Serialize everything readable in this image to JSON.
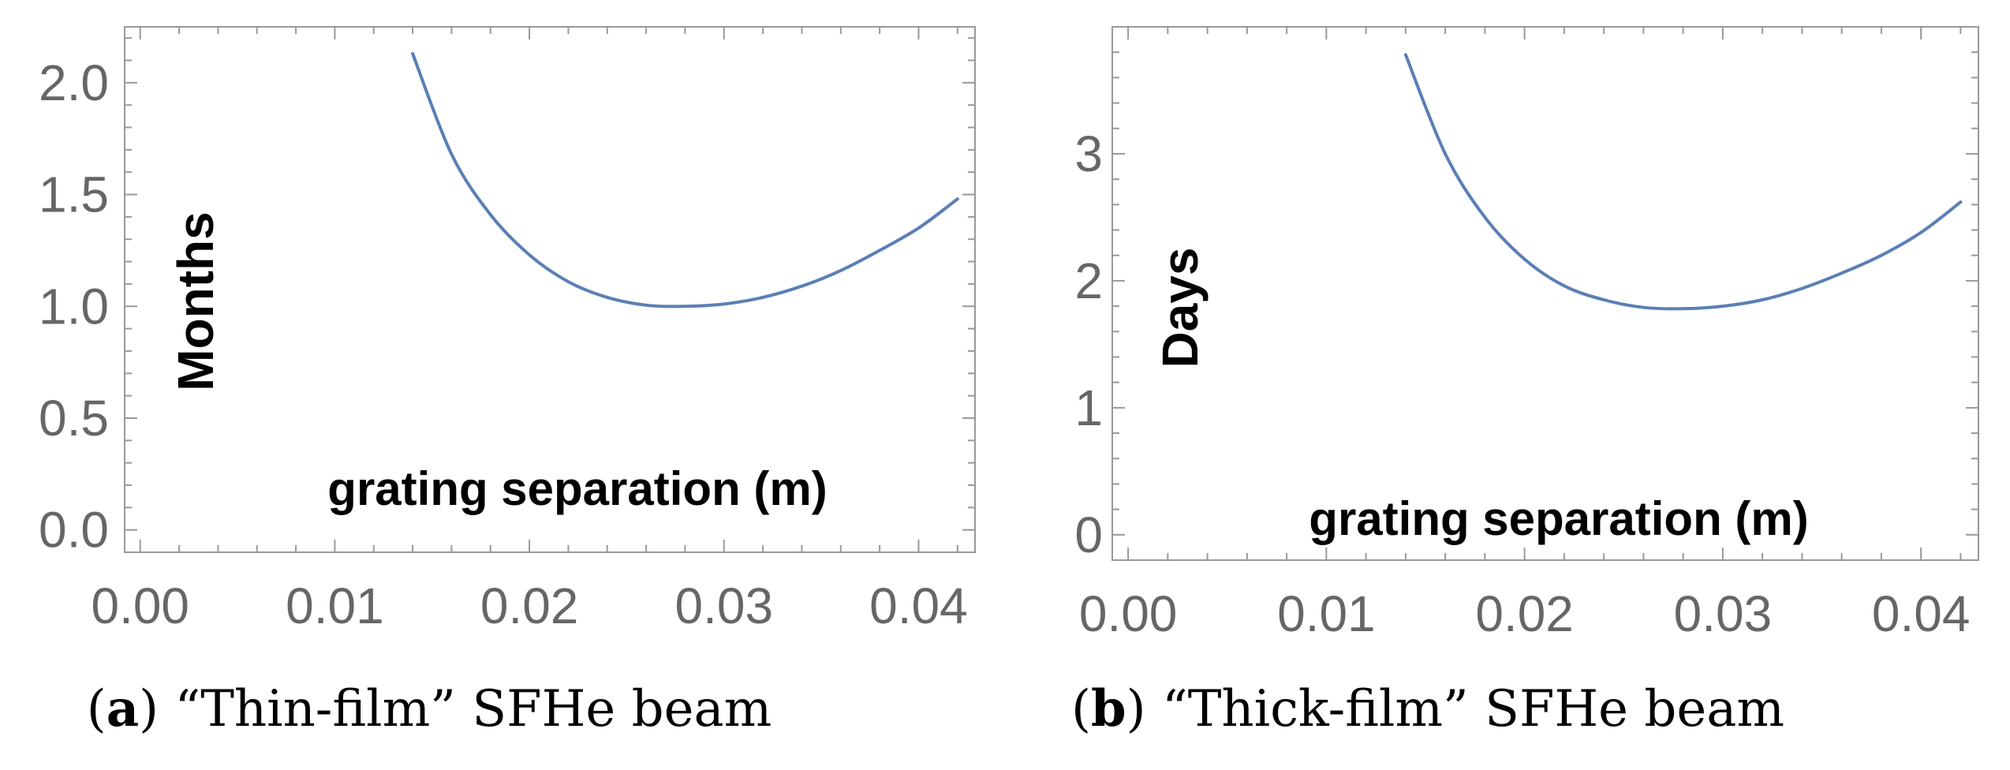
{
  "chart_data": [
    {
      "type": "line",
      "panel_label": "a",
      "caption": "“Thin-film” SFHe beam",
      "xlabel": "grating separation (m)",
      "ylabel": "Months",
      "xlim": [
        -0.0008,
        0.0429
      ],
      "ylim": [
        -0.1,
        2.25
      ],
      "x_ticks": [
        "0.00",
        "0.01",
        "0.02",
        "0.03",
        "0.04"
      ],
      "y_ticks": [
        "0.0",
        "0.5",
        "1.0",
        "1.5",
        "2.0"
      ],
      "series": [
        {
          "color": "#5b7fb5",
          "x": [
            0.014,
            0.016,
            0.018,
            0.02,
            0.022,
            0.024,
            0.026,
            0.028,
            0.03,
            0.032,
            0.034,
            0.036,
            0.038,
            0.04,
            0.042
          ],
          "y": [
            2.13,
            1.68,
            1.41,
            1.23,
            1.11,
            1.04,
            1.005,
            1.0,
            1.01,
            1.04,
            1.09,
            1.16,
            1.25,
            1.35,
            1.48
          ]
        }
      ]
    },
    {
      "type": "line",
      "panel_label": "b",
      "caption": "“Thick-film” SFHe beam",
      "xlabel": "grating separation (m)",
      "ylabel": "Days",
      "xlim": [
        -0.0008,
        0.0429
      ],
      "ylim": [
        -0.2,
        4.0
      ],
      "x_ticks": [
        "0.00",
        "0.01",
        "0.02",
        "0.03",
        "0.04"
      ],
      "y_ticks": [
        "0",
        "1",
        "2",
        "3"
      ],
      "series": [
        {
          "color": "#5b7fb5",
          "x": [
            0.014,
            0.016,
            0.018,
            0.02,
            0.022,
            0.024,
            0.026,
            0.028,
            0.03,
            0.032,
            0.034,
            0.036,
            0.038,
            0.04,
            0.042
          ],
          "y": [
            3.78,
            3.0,
            2.5,
            2.17,
            1.96,
            1.85,
            1.79,
            1.78,
            1.8,
            1.85,
            1.94,
            2.06,
            2.2,
            2.38,
            2.62
          ]
        }
      ]
    }
  ]
}
